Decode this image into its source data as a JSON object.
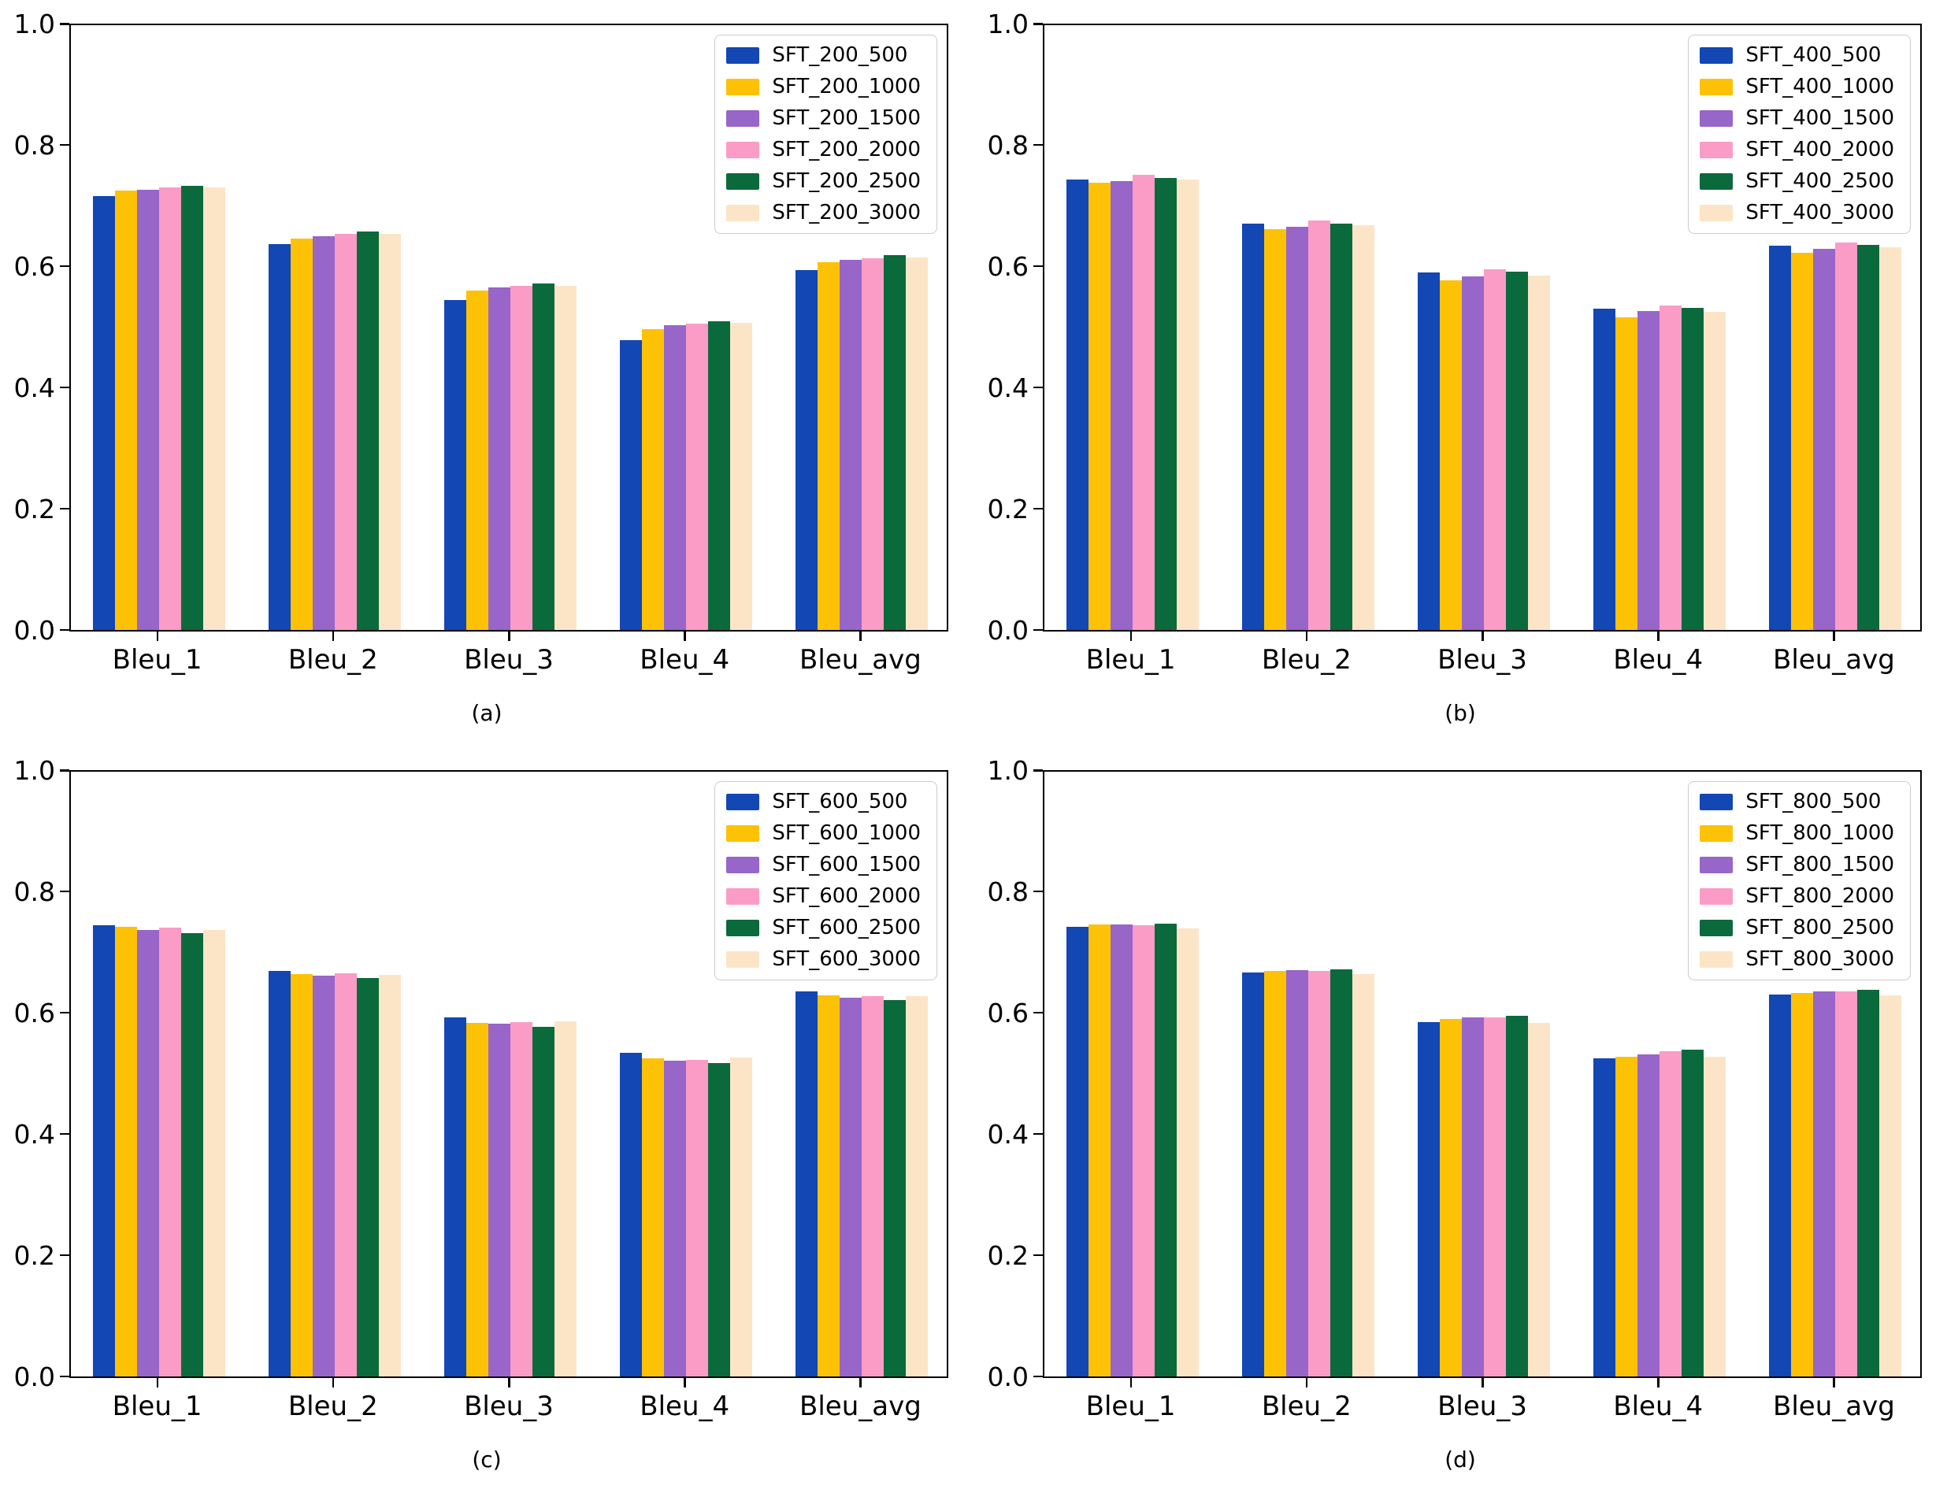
{
  "figure": {
    "background": "#ffffff",
    "axis_color": "#000000",
    "text_color": "#000000"
  },
  "palette": [
    "#1247B4",
    "#FDC205",
    "#9865C8",
    "#FB9CC6",
    "#0B6A3C",
    "#FCE5C6"
  ],
  "chart_data": [
    {
      "type": "bar",
      "caption": "(a)",
      "categories": [
        "Bleu_1",
        "Bleu_2",
        "Bleu_3",
        "Bleu_4",
        "Bleu_avg"
      ],
      "ylim": [
        0.0,
        1.0
      ],
      "yticks": [
        0.0,
        0.2,
        0.4,
        0.6,
        0.8,
        1.0
      ],
      "ytick_labels": [
        "0.0",
        "0.2",
        "0.4",
        "0.6",
        "0.8",
        "1.0"
      ],
      "grid": false,
      "legend_position": "upper right",
      "series": [
        {
          "name": "SFT_200_500",
          "values": [
            0.716,
            0.637,
            0.545,
            0.478,
            0.594
          ]
        },
        {
          "name": "SFT_200_1000",
          "values": [
            0.725,
            0.646,
            0.56,
            0.497,
            0.607
          ]
        },
        {
          "name": "SFT_200_1500",
          "values": [
            0.726,
            0.65,
            0.565,
            0.503,
            0.611
          ]
        },
        {
          "name": "SFT_200_2000",
          "values": [
            0.73,
            0.654,
            0.568,
            0.506,
            0.614
          ]
        },
        {
          "name": "SFT_200_2500",
          "values": [
            0.733,
            0.657,
            0.572,
            0.51,
            0.618
          ]
        },
        {
          "name": "SFT_200_3000",
          "values": [
            0.731,
            0.654,
            0.568,
            0.507,
            0.615
          ]
        }
      ]
    },
    {
      "type": "bar",
      "caption": "(b)",
      "categories": [
        "Bleu_1",
        "Bleu_2",
        "Bleu_3",
        "Bleu_4",
        "Bleu_avg"
      ],
      "ylim": [
        0.0,
        1.0
      ],
      "yticks": [
        0.0,
        0.2,
        0.4,
        0.6,
        0.8,
        1.0
      ],
      "ytick_labels": [
        "0.0",
        "0.2",
        "0.4",
        "0.6",
        "0.8",
        "1.0"
      ],
      "grid": false,
      "legend_position": "upper right",
      "series": [
        {
          "name": "SFT_400_500",
          "values": [
            0.744,
            0.67,
            0.59,
            0.53,
            0.634
          ]
        },
        {
          "name": "SFT_400_1000",
          "values": [
            0.738,
            0.661,
            0.577,
            0.516,
            0.623
          ]
        },
        {
          "name": "SFT_400_1500",
          "values": [
            0.741,
            0.666,
            0.584,
            0.526,
            0.629
          ]
        },
        {
          "name": "SFT_400_2000",
          "values": [
            0.751,
            0.676,
            0.595,
            0.536,
            0.64
          ]
        },
        {
          "name": "SFT_400_2500",
          "values": [
            0.746,
            0.671,
            0.591,
            0.531,
            0.635
          ]
        },
        {
          "name": "SFT_400_3000",
          "values": [
            0.744,
            0.668,
            0.585,
            0.525,
            0.631
          ]
        }
      ]
    },
    {
      "type": "bar",
      "caption": "(c)",
      "categories": [
        "Bleu_1",
        "Bleu_2",
        "Bleu_3",
        "Bleu_4",
        "Bleu_avg"
      ],
      "ylim": [
        0.0,
        1.0
      ],
      "yticks": [
        0.0,
        0.2,
        0.4,
        0.6,
        0.8,
        1.0
      ],
      "ytick_labels": [
        "0.0",
        "0.2",
        "0.4",
        "0.6",
        "0.8",
        "1.0"
      ],
      "grid": false,
      "legend_position": "upper right",
      "series": [
        {
          "name": "SFT_600_500",
          "values": [
            0.745,
            0.669,
            0.592,
            0.534,
            0.635
          ]
        },
        {
          "name": "SFT_600_1000",
          "values": [
            0.742,
            0.664,
            0.584,
            0.525,
            0.629
          ]
        },
        {
          "name": "SFT_600_1500",
          "values": [
            0.737,
            0.661,
            0.582,
            0.521,
            0.625
          ]
        },
        {
          "name": "SFT_600_2000",
          "values": [
            0.741,
            0.665,
            0.585,
            0.522,
            0.628
          ]
        },
        {
          "name": "SFT_600_2500",
          "values": [
            0.732,
            0.657,
            0.577,
            0.517,
            0.621
          ]
        },
        {
          "name": "SFT_600_3000",
          "values": [
            0.737,
            0.663,
            0.586,
            0.526,
            0.628
          ]
        }
      ]
    },
    {
      "type": "bar",
      "caption": "(d)",
      "categories": [
        "Bleu_1",
        "Bleu_2",
        "Bleu_3",
        "Bleu_4",
        "Bleu_avg"
      ],
      "ylim": [
        0.0,
        1.0
      ],
      "yticks": [
        0.0,
        0.2,
        0.4,
        0.6,
        0.8,
        1.0
      ],
      "ytick_labels": [
        "0.0",
        "0.2",
        "0.4",
        "0.6",
        "0.8",
        "1.0"
      ],
      "grid": false,
      "legend_position": "upper right",
      "series": [
        {
          "name": "SFT_800_500",
          "values": [
            0.742,
            0.667,
            0.585,
            0.525,
            0.63
          ]
        },
        {
          "name": "SFT_800_1000",
          "values": [
            0.746,
            0.669,
            0.59,
            0.528,
            0.633
          ]
        },
        {
          "name": "SFT_800_1500",
          "values": [
            0.746,
            0.67,
            0.592,
            0.532,
            0.635
          ]
        },
        {
          "name": "SFT_800_2000",
          "values": [
            0.745,
            0.669,
            0.592,
            0.537,
            0.636
          ]
        },
        {
          "name": "SFT_800_2500",
          "values": [
            0.747,
            0.672,
            0.595,
            0.539,
            0.638
          ]
        },
        {
          "name": "SFT_800_3000",
          "values": [
            0.74,
            0.664,
            0.583,
            0.527,
            0.629
          ]
        }
      ]
    }
  ]
}
